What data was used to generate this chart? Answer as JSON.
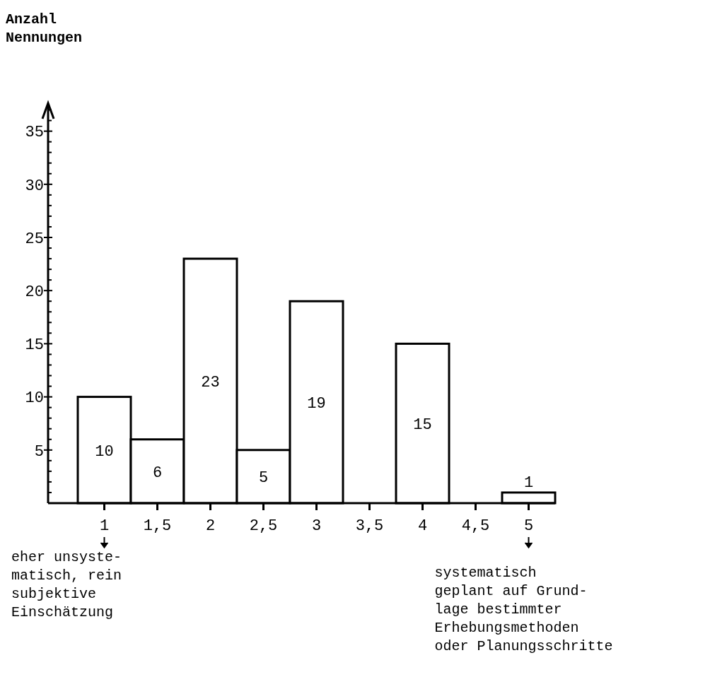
{
  "chart_data": {
    "type": "bar",
    "ylabel": "Anzahl\nNennungen",
    "categories": [
      "1",
      "1,5",
      "2",
      "2,5",
      "3",
      "3,5",
      "4",
      "4,5",
      "5"
    ],
    "values": [
      10,
      6,
      23,
      5,
      19,
      0,
      15,
      0,
      1
    ],
    "value_labels": [
      "10",
      "6",
      "23",
      "5",
      "19",
      null,
      "15",
      null,
      "1"
    ],
    "color": "#ffffff",
    "ylim": [
      0,
      37.5
    ],
    "yticks": [
      {
        "value": 1,
        "label": null
      },
      {
        "value": 2,
        "label": null
      },
      {
        "value": 3,
        "label": null
      },
      {
        "value": 4,
        "label": null
      },
      5,
      {
        "value": 6,
        "label": null
      },
      {
        "value": 7,
        "label": null
      },
      {
        "value": 8,
        "label": null
      },
      {
        "value": 9,
        "label": null
      },
      10,
      {
        "value": 11,
        "label": null
      },
      {
        "value": 12,
        "label": null
      },
      {
        "value": 13,
        "label": null
      },
      {
        "value": 14,
        "label": null
      },
      15,
      {
        "value": 16,
        "label": null
      },
      {
        "value": 17,
        "label": null
      },
      {
        "value": 18,
        "label": null
      },
      {
        "value": 19,
        "label": null
      },
      20,
      {
        "value": 21,
        "label": null
      },
      {
        "value": 22,
        "label": null
      },
      {
        "value": 23,
        "label": null
      },
      {
        "value": 24,
        "label": null
      },
      25,
      {
        "value": 26,
        "label": null
      },
      {
        "value": 27,
        "label": null
      },
      {
        "value": 28,
        "label": null
      },
      {
        "value": 29,
        "label": null
      },
      30,
      {
        "value": 31,
        "label": null
      },
      {
        "value": 32,
        "label": null
      },
      {
        "value": 33,
        "label": null
      },
      {
        "value": 34,
        "label": null
      },
      35,
      {
        "value": 36,
        "label": null
      },
      {
        "value": 37,
        "label": null
      }
    ],
    "annotations": [
      "eher unsyste-\nmatisch, rein\nsubjektive\nEinschätzung",
      "systematisch\ngeplant auf Grund-\nlage bestimmter\nErhebungsmethoden\noder Planungsschritte"
    ]
  }
}
